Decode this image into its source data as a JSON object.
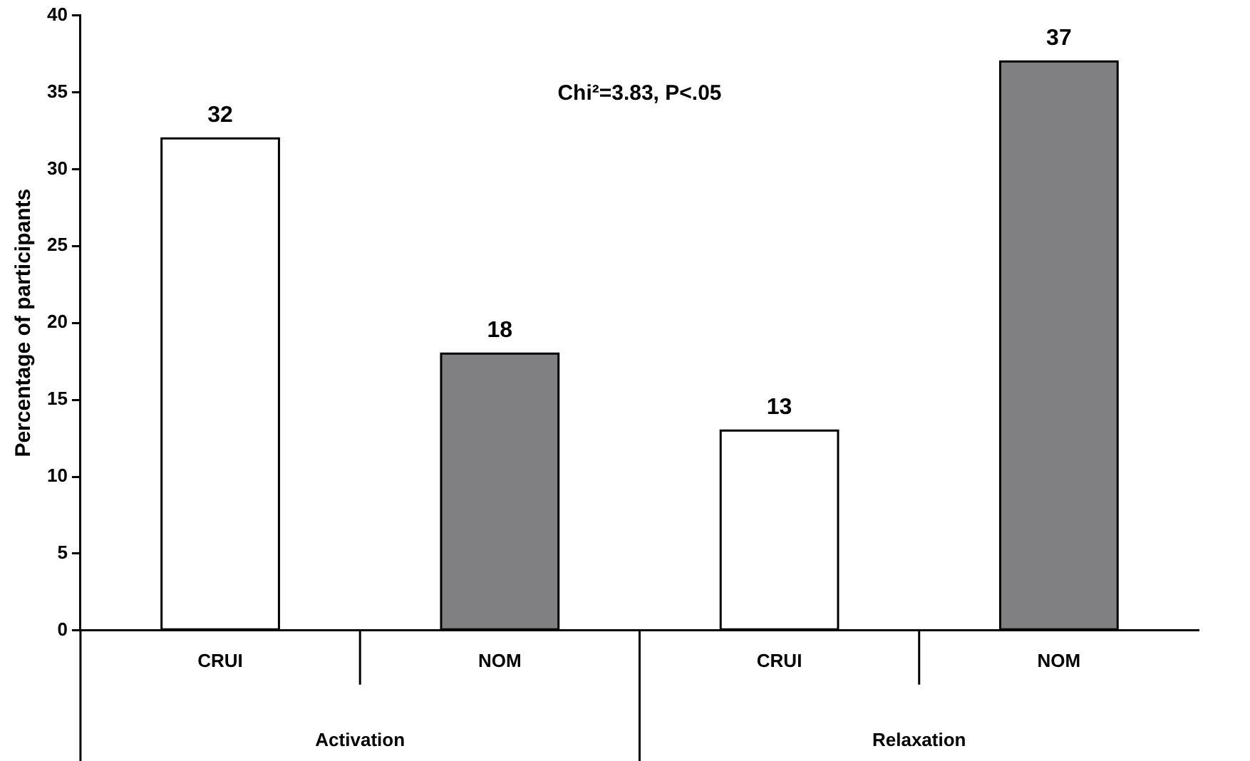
{
  "chart_data": {
    "type": "bar",
    "categories": [
      "CRUI",
      "NOM",
      "CRUI",
      "NOM"
    ],
    "values": [
      32,
      18,
      13,
      37
    ],
    "colors": [
      "#ffffff",
      "#808083",
      "#ffffff",
      "#808083"
    ],
    "ylabel": "Percentage of participants",
    "ylim": [
      0,
      40
    ],
    "yticks": [
      0,
      5,
      10,
      15,
      20,
      25,
      30,
      35,
      40
    ],
    "grid": false,
    "legend": false,
    "data_labels": true,
    "annotations": [
      "Chi²=3.83, P<.05",
      "Activation",
      "Relaxation"
    ]
  }
}
